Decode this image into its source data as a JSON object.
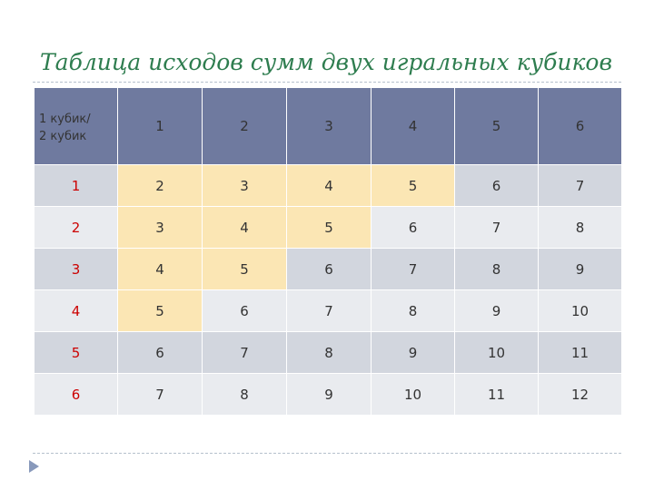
{
  "title": "Таблица исходов сумм двух игральных кубиков",
  "table": {
    "corner": "1 кубик/\n2 кубик",
    "columns": [
      "1",
      "2",
      "3",
      "4",
      "5",
      "6"
    ],
    "rows": [
      {
        "head": "1",
        "cells": [
          "2",
          "3",
          "4",
          "5",
          "6",
          "7"
        ]
      },
      {
        "head": "2",
        "cells": [
          "3",
          "4",
          "5",
          "6",
          "7",
          "8"
        ]
      },
      {
        "head": "3",
        "cells": [
          "4",
          "5",
          "6",
          "7",
          "8",
          "9"
        ]
      },
      {
        "head": "4",
        "cells": [
          "5",
          "6",
          "7",
          "8",
          "9",
          "10"
        ]
      },
      {
        "head": "5",
        "cells": [
          "6",
          "7",
          "8",
          "9",
          "10",
          "11"
        ]
      },
      {
        "head": "6",
        "cells": [
          "7",
          "8",
          "9",
          "10",
          "11",
          "12"
        ]
      }
    ]
  },
  "colors": {
    "header": "#6f7a9f",
    "row_dark": "#d2d6de",
    "row_light": "#e9ebef",
    "highlight": "#fbe6b4",
    "row_head_text": "#cc0000",
    "title_text": "#2e7d4f"
  }
}
